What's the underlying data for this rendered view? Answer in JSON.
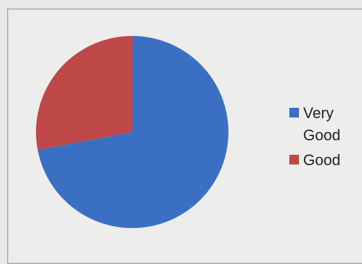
{
  "chart_data": {
    "type": "pie",
    "title": "",
    "categories": [
      "Very Good",
      "Good"
    ],
    "values": [
      72,
      28
    ],
    "colors": [
      "#3b6fc4",
      "#be4848"
    ],
    "legend_position": "right"
  }
}
